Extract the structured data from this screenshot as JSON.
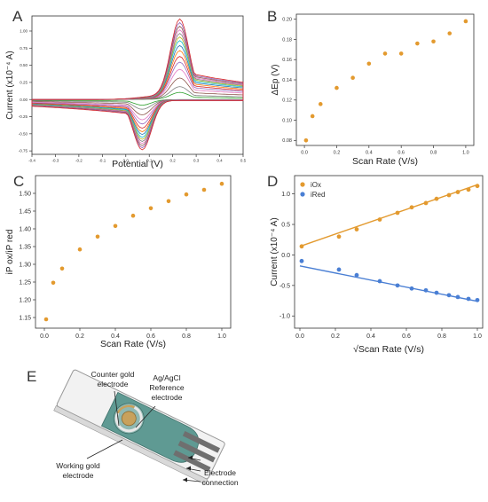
{
  "colors": {
    "orange": "#e39a2f",
    "blue": "#4a7fd4",
    "device_teal": "#5f9a93",
    "device_body": "#f2f2f2",
    "gold": "#c8a15c"
  },
  "panels": {
    "A": {
      "label": "A",
      "xlabel": "Potential (V)",
      "ylabel": "Current (x10⁻⁴ A)"
    },
    "B": {
      "label": "B",
      "xlabel": "Scan Rate (V/s)",
      "ylabel": "ΔEp (V)"
    },
    "C": {
      "label": "C",
      "xlabel": "Scan Rate (V/s)",
      "ylabel": "iP ox/iP red"
    },
    "D": {
      "label": "D",
      "xlabel": "√Scan Rate (V/s)",
      "ylabel": "Current (x10⁻⁴ A)"
    },
    "E": {
      "label": "E",
      "labels": {
        "counter": [
          "Counter gold",
          "electrode"
        ],
        "reference": [
          "Ag/AgCl",
          "Reference",
          "electrode"
        ],
        "working": [
          "Working gold",
          "electrode"
        ],
        "connection": [
          "Electrode",
          "connection"
        ]
      }
    }
  },
  "chart_data": [
    {
      "panel": "A",
      "type": "line",
      "xlabel": "Potential (V)",
      "ylabel": "Current (x10⁻⁴ A)",
      "xlim": [
        -0.4,
        0.5
      ],
      "ylim": [
        -0.8,
        1.22
      ],
      "x_ticks": [
        "-0.4",
        "-0.3",
        "-0.2",
        "-0.1",
        "0.0",
        "0.1",
        "0.2",
        "0.3",
        "0.4",
        "0.5"
      ],
      "x_tick_values": [
        -0.4,
        -0.3,
        -0.2,
        -0.1,
        0.0,
        0.1,
        0.2,
        0.3,
        0.4,
        0.5
      ],
      "y_ticks": [
        "-0.75",
        "-0.50",
        "-0.25",
        "0.00",
        "0.25",
        "0.50",
        "0.75",
        "1.00"
      ],
      "y_tick_values": [
        -0.75,
        -0.5,
        -0.25,
        0.0,
        0.25,
        0.5,
        0.75,
        1.0
      ],
      "series_count": 15,
      "ox_peak_potential": 0.23,
      "red_peak_potential": 0.07,
      "ox_peak_currents": [
        0.1,
        0.18,
        0.3,
        0.42,
        0.52,
        0.6,
        0.68,
        0.75,
        0.82,
        0.87,
        0.92,
        0.97,
        1.02,
        1.07,
        1.12
      ],
      "red_peak_currents": [
        -0.08,
        -0.14,
        -0.22,
        -0.29,
        -0.35,
        -0.41,
        -0.46,
        -0.5,
        -0.54,
        -0.57,
        -0.6,
        -0.63,
        -0.66,
        -0.69,
        -0.72
      ],
      "series_colors": [
        "#2ca02c",
        "#7f7f7f",
        "#8c564b",
        "#e377c2",
        "#9467bd",
        "#d62728",
        "#ff7f0e",
        "#1f77b4",
        "#17becf",
        "#bcbd22",
        "#7f7f7f",
        "#e377c2",
        "#8c564b",
        "#9467bd",
        "#d62728"
      ]
    },
    {
      "panel": "B",
      "type": "scatter",
      "xlabel": "Scan Rate (V/s)",
      "ylabel": "ΔEp (V)",
      "xlim": [
        -0.05,
        1.05
      ],
      "ylim": [
        0.075,
        0.205
      ],
      "x_ticks": [
        "0.0",
        "0.2",
        "0.4",
        "0.6",
        "0.8",
        "1.0"
      ],
      "x_tick_values": [
        0.0,
        0.2,
        0.4,
        0.6,
        0.8,
        1.0
      ],
      "y_ticks": [
        "0.08",
        "0.10",
        "0.12",
        "0.14",
        "0.16",
        "0.18",
        "0.20"
      ],
      "y_tick_values": [
        0.08,
        0.1,
        0.12,
        0.14,
        0.16,
        0.18,
        0.2
      ],
      "x": [
        0.01,
        0.05,
        0.1,
        0.2,
        0.3,
        0.4,
        0.5,
        0.6,
        0.7,
        0.8,
        0.9,
        1.0
      ],
      "y": [
        0.08,
        0.104,
        0.116,
        0.132,
        0.142,
        0.156,
        0.166,
        0.166,
        0.176,
        0.178,
        0.186,
        0.198
      ]
    },
    {
      "panel": "C",
      "type": "scatter",
      "xlabel": "Scan Rate (V/s)",
      "ylabel": "iP ox/iP red",
      "xlim": [
        -0.05,
        1.05
      ],
      "ylim": [
        1.12,
        1.55
      ],
      "x_ticks": [
        "0.0",
        "0.2",
        "0.4",
        "0.6",
        "0.8",
        "1.0"
      ],
      "x_tick_values": [
        0.0,
        0.2,
        0.4,
        0.6,
        0.8,
        1.0
      ],
      "y_ticks": [
        "1.15",
        "1.20",
        "1.25",
        "1.30",
        "1.35",
        "1.40",
        "1.45",
        "1.50"
      ],
      "y_tick_values": [
        1.15,
        1.2,
        1.25,
        1.3,
        1.35,
        1.4,
        1.45,
        1.5
      ],
      "x": [
        0.01,
        0.05,
        0.1,
        0.2,
        0.3,
        0.4,
        0.5,
        0.6,
        0.7,
        0.8,
        0.9,
        1.0
      ],
      "y": [
        1.145,
        1.248,
        1.288,
        1.342,
        1.378,
        1.408,
        1.437,
        1.458,
        1.478,
        1.497,
        1.51,
        1.527
      ]
    },
    {
      "panel": "D",
      "type": "scatter",
      "xlabel": "√Scan Rate (V/s)",
      "ylabel": "Current (x10⁻⁴ A)",
      "xlim": [
        -0.03,
        1.03
      ],
      "ylim": [
        -1.2,
        1.3
      ],
      "x_ticks": [
        "0.0",
        "0.2",
        "0.4",
        "0.6",
        "0.8",
        "1.0"
      ],
      "x_tick_values": [
        0.0,
        0.2,
        0.4,
        0.6,
        0.8,
        1.0
      ],
      "y_ticks": [
        "-1.0",
        "-0.5",
        "0.0",
        "0.5",
        "1.0"
      ],
      "y_tick_values": [
        -1.0,
        -0.5,
        0.0,
        0.5,
        1.0
      ],
      "legend": "top-left",
      "series": [
        {
          "name": "iOx",
          "color": "#e39a2f",
          "x": [
            0.01,
            0.22,
            0.32,
            0.45,
            0.55,
            0.63,
            0.71,
            0.77,
            0.84,
            0.89,
            0.95,
            1.0
          ],
          "y": [
            0.14,
            0.3,
            0.42,
            0.58,
            0.69,
            0.78,
            0.85,
            0.92,
            0.98,
            1.03,
            1.07,
            1.13
          ],
          "fit": [
            0.14,
            1.15
          ]
        },
        {
          "name": "iRed",
          "color": "#4a7fd4",
          "x": [
            0.01,
            0.22,
            0.32,
            0.45,
            0.55,
            0.63,
            0.71,
            0.77,
            0.84,
            0.89,
            0.95,
            1.0
          ],
          "y": [
            -0.1,
            -0.24,
            -0.33,
            -0.43,
            -0.5,
            -0.55,
            -0.58,
            -0.62,
            -0.66,
            -0.69,
            -0.72,
            -0.74
          ],
          "fit": [
            -0.18,
            -0.76
          ]
        }
      ]
    }
  ]
}
